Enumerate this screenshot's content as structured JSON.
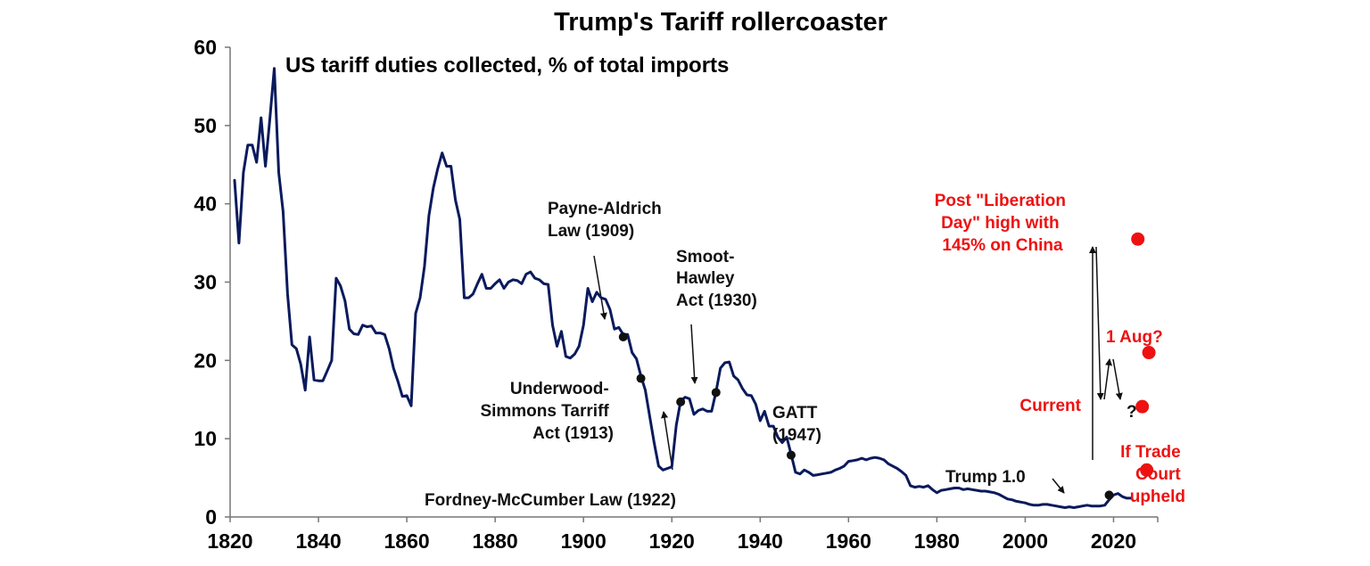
{
  "chart_data": {
    "type": "line",
    "title": "Trump's Tariff rollercoaster",
    "subtitle": "US tariff duties collected, % of total imports",
    "xlabel": "",
    "ylabel": "",
    "xlim": [
      1820,
      2030
    ],
    "ylim": [
      0,
      60
    ],
    "x_ticks": [
      "1820",
      "1840",
      "1860",
      "1880",
      "1900",
      "1920",
      "1940",
      "1960",
      "1980",
      "2000",
      "2020"
    ],
    "y_ticks": [
      "0",
      "10",
      "20",
      "30",
      "40",
      "50",
      "60"
    ],
    "grid": false,
    "legend": "none",
    "line_color": "#0a1a5c",
    "accent_color": "#ee1111",
    "series": [
      {
        "x": [
          1821,
          1822,
          1823,
          1824,
          1825,
          1826,
          1827,
          1828,
          1829,
          1830,
          1831,
          1832,
          1833,
          1834,
          1835,
          1836,
          1837,
          1838,
          1839,
          1840,
          1841,
          1842,
          1843,
          1844,
          1845,
          1846,
          1847,
          1848,
          1849,
          1850,
          1851,
          1852,
          1853,
          1854,
          1855,
          1856,
          1857,
          1858,
          1859,
          1860,
          1861,
          1862,
          1863,
          1864,
          1865,
          1866,
          1867,
          1868,
          1869,
          1870,
          1871,
          1872,
          1873,
          1874,
          1875,
          1876,
          1877,
          1878,
          1879,
          1880,
          1881,
          1882,
          1883,
          1884,
          1885,
          1886,
          1887,
          1888,
          1889,
          1890,
          1891,
          1892,
          1893,
          1894,
          1895,
          1896,
          1897,
          1898,
          1899,
          1900,
          1901,
          1902,
          1903,
          1904,
          1905,
          1906,
          1907,
          1908,
          1909,
          1910,
          1911,
          1912,
          1913,
          1914,
          1915,
          1916,
          1917,
          1918,
          1919,
          1920,
          1921,
          1922,
          1923,
          1924,
          1925,
          1926,
          1927,
          1928,
          1929,
          1930,
          1931,
          1932,
          1933,
          1934,
          1935,
          1936,
          1937,
          1938,
          1939,
          1940,
          1941,
          1942,
          1943,
          1944,
          1945,
          1946,
          1947,
          1948,
          1949,
          1950,
          1951,
          1952,
          1953,
          1954,
          1955,
          1956,
          1957,
          1958,
          1959,
          1960,
          1961,
          1962,
          1963,
          1964,
          1965,
          1966,
          1967,
          1968,
          1969,
          1970,
          1971,
          1972,
          1973,
          1974,
          1975,
          1976,
          1977,
          1978,
          1979,
          1980,
          1981,
          1982,
          1983,
          1984,
          1985,
          1986,
          1987,
          1988,
          1989,
          1990,
          1991,
          1992,
          1993,
          1994,
          1995,
          1996,
          1997,
          1998,
          1999,
          2000,
          2001,
          2002,
          2003,
          2004,
          2005,
          2006,
          2007,
          2008,
          2009,
          2010,
          2011,
          2012,
          2013,
          2014,
          2015,
          2016,
          2017,
          2018,
          2019,
          2020,
          2021,
          2022,
          2023,
          2024
        ],
        "y": [
          43,
          35,
          44,
          47.5,
          47.5,
          45.3,
          51,
          44.8,
          50.9,
          57.3,
          44,
          39,
          28.5,
          22,
          21.5,
          19.5,
          16.2,
          23,
          17.5,
          17.4,
          17.4,
          18.7,
          20,
          30.5,
          29.5,
          27.6,
          24,
          23.4,
          23.3,
          24.5,
          24.3,
          24.4,
          23.5,
          23.5,
          23.3,
          21.5,
          19,
          17.3,
          15.4,
          15.5,
          14.2,
          26,
          28,
          32,
          38.5,
          42,
          44.5,
          46.5,
          44.8,
          44.8,
          40.5,
          38,
          28,
          28,
          28.5,
          29.8,
          31,
          29.2,
          29.2,
          29.8,
          30.3,
          29.2,
          30,
          30.3,
          30.2,
          29.8,
          31,
          31.3,
          30.5,
          30.3,
          29.8,
          29.7,
          24.5,
          21.8,
          23.7,
          20.5,
          20.3,
          20.8,
          21.8,
          24.5,
          29.2,
          27.5,
          28.7,
          28,
          27.8,
          26.5,
          24,
          24.2,
          23.3,
          23.3,
          21,
          20.2,
          18,
          16.2,
          12.8,
          9.5,
          6.5,
          6,
          6.2,
          6.4,
          11.7,
          14.8,
          15.3,
          15.1,
          13.1,
          13.6,
          13.8,
          13.5,
          13.5,
          16,
          19,
          19.7,
          19.8,
          18,
          17.5,
          16.4,
          15.6,
          15.5,
          14.4,
          12.3,
          13.5,
          11.6,
          11.6,
          10.2,
          9.5,
          10.2,
          8,
          5.7,
          5.5,
          6,
          5.7,
          5.3,
          5.4,
          5.5,
          5.6,
          5.7,
          6,
          6.2,
          6.5,
          7.1,
          7.2,
          7.3,
          7.5,
          7.3,
          7.5,
          7.6,
          7.5,
          7.3,
          6.8,
          6.5,
          6.2,
          5.8,
          5.3,
          4,
          3.8,
          3.9,
          3.8,
          4,
          3.5,
          3.1,
          3.4,
          3.5,
          3.6,
          3.7,
          3.7,
          3.5,
          3.6,
          3.5,
          3.4,
          3.3,
          3.3,
          3.2,
          3.1,
          2.9,
          2.6,
          2.3,
          2.2,
          2,
          1.9,
          1.8,
          1.6,
          1.5,
          1.5,
          1.6,
          1.6,
          1.5,
          1.4,
          1.3,
          1.2,
          1.3,
          1.2,
          1.3,
          1.4,
          1.5,
          1.4,
          1.4,
          1.4,
          1.5,
          2.2,
          2.8,
          3,
          2.6,
          2.4,
          2.4
        ]
      }
    ],
    "markers": [
      {
        "name": "Payne-Aldrich Law (1909)",
        "x": 1909,
        "y": 23.0,
        "color": "#111111"
      },
      {
        "name": "Underwood-Simmons Tarriff Act (1913)",
        "x": 1913,
        "y": 17.7,
        "color": "#111111"
      },
      {
        "name": "Fordney-McCumber Law (1922)",
        "x": 1922,
        "y": 14.7,
        "color": "#111111"
      },
      {
        "name": "Smoot-Hawley Act (1930)",
        "x": 1930,
        "y": 15.9,
        "color": "#111111"
      },
      {
        "name": "GATT (1947)",
        "x": 1947,
        "y": 7.9,
        "color": "#111111"
      },
      {
        "name": "Trump 1.0",
        "x": 2019,
        "y": 2.8,
        "color": "#111111"
      },
      {
        "name": "Post \"Liberation Day\" high with 145% on China",
        "x": 2025.5,
        "y": 35.5,
        "color": "#ee1111"
      },
      {
        "name": "Current",
        "x": 2026.5,
        "y": 14.1,
        "color": "#ee1111"
      },
      {
        "name": "1 Aug?",
        "x": 2028,
        "y": 21.0,
        "color": "#ee1111"
      },
      {
        "name": "If Trade Court upheld",
        "x": 2027.5,
        "y": 6.0,
        "color": "#ee1111"
      }
    ],
    "annotations": {
      "payne": [
        "Payne-Aldrich",
        "Law (1909)"
      ],
      "underwood": [
        "Underwood-",
        "Simmons Tarriff",
        "Act (1913)"
      ],
      "fordney": [
        "Fordney-McCumber Law (1922)"
      ],
      "smoot": [
        "Smoot-",
        "Hawley",
        "Act (1930)"
      ],
      "gatt": [
        "GATT",
        "(1947)"
      ],
      "trump1": [
        "Trump 1.0"
      ],
      "liberation": [
        "Post \"Liberation",
        "Day\" high with",
        "145% on China"
      ],
      "aug": [
        "1 Aug?"
      ],
      "current": [
        "Current"
      ],
      "question": [
        "?"
      ],
      "court": [
        "If Trade",
        "Court",
        "upheld"
      ]
    }
  }
}
